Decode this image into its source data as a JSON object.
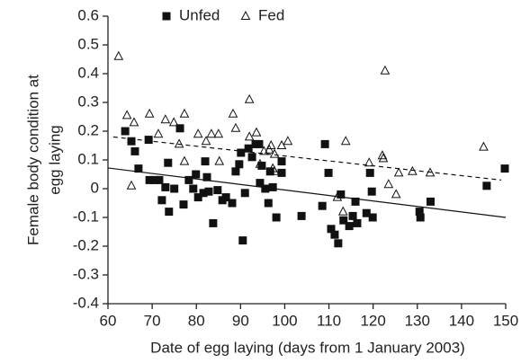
{
  "chart_data": {
    "type": "scatter",
    "xlabel": "Date of egg laying (days from 1 January 2003)",
    "ylabel": [
      "Female body condition at",
      "egg laying"
    ],
    "xlim": [
      60,
      150
    ],
    "ylim": [
      -0.4,
      0.6
    ],
    "xticks": [
      60,
      70,
      80,
      90,
      100,
      110,
      120,
      130,
      140,
      150
    ],
    "yticks": [
      -0.4,
      -0.3,
      -0.2,
      -0.1,
      0,
      0.1,
      0.2,
      0.3,
      0.4,
      0.5,
      0.6
    ],
    "legend": "top-left",
    "series": [
      {
        "name": "Unfed",
        "marker": "square",
        "color": "#111111",
        "x": [
          63.9,
          65.3,
          66.1,
          66.9,
          69.2,
          69.4,
          70.6,
          71.6,
          72.2,
          73,
          73.6,
          73.8,
          75,
          76.3,
          77.1,
          78.3,
          79.3,
          79.9,
          80.4,
          81.6,
          82,
          82.4,
          82.8,
          83.8,
          84.8,
          85.9,
          86.7,
          88.1,
          88.9,
          89.7,
          90.1,
          90.5,
          91,
          91.8,
          92.6,
          93.4,
          94.2,
          94.4,
          94.8,
          95.6,
          96.3,
          96.7,
          97.3,
          98.1,
          99.3,
          99.3,
          103.8,
          108.5,
          109.1,
          109.9,
          110.5,
          111.3,
          112.1,
          112.7,
          113.3,
          114.6,
          115.4,
          116,
          116.4,
          118.5,
          119.3,
          119.7,
          119.9,
          130.5,
          130.7,
          133,
          145.7,
          149.8
        ],
        "values": [
          0.2,
          0.165,
          0.13,
          0.07,
          0.17,
          0.03,
          0.03,
          0.03,
          -0.04,
          0.005,
          0.09,
          -0.08,
          0,
          0.21,
          -0.055,
          0.03,
          0,
          0.05,
          -0.03,
          -0.015,
          0.095,
          0.04,
          -0.01,
          -0.12,
          -0.005,
          -0.04,
          -0.03,
          -0.05,
          0.06,
          0.085,
          0.125,
          -0.18,
          -0.015,
          0.14,
          0.11,
          0.155,
          0.155,
          0.02,
          0.08,
          0,
          -0.05,
          0.06,
          0.005,
          -0.1,
          0.055,
          0.095,
          -0.095,
          -0.06,
          0.155,
          0.055,
          -0.14,
          -0.16,
          -0.19,
          -0.02,
          -0.11,
          -0.13,
          -0.095,
          -0.045,
          -0.12,
          -0.085,
          0.055,
          -0.01,
          -0.1,
          -0.08,
          -0.1,
          -0.045,
          0.01,
          0.07
        ]
      },
      {
        "name": "Fed",
        "marker": "triangle",
        "color": "#111111",
        "x": [
          62.4,
          64.3,
          65.3,
          65.9,
          69.4,
          71.4,
          73,
          74.9,
          76.1,
          77.3,
          77.3,
          80.4,
          82.2,
          83.4,
          85,
          85.2,
          88.3,
          88.9,
          92,
          92,
          93.6,
          94.4,
          95.3,
          96.5,
          96.9,
          97.3,
          97.7,
          97.7,
          99.3,
          100.7,
          113.8,
          111.9,
          113.2,
          119.1,
          122.7,
          122.1,
          122.3,
          123.5,
          125.2,
          125.8,
          128.9,
          132.9,
          145
        ],
        "values": [
          0.46,
          0.255,
          0.01,
          0.23,
          0.26,
          0.19,
          0.24,
          0.23,
          0.155,
          0.095,
          0.26,
          0.19,
          0.165,
          0.19,
          0.19,
          0.095,
          0.26,
          0.21,
          0.31,
          0.18,
          0.195,
          0.085,
          0.13,
          0.135,
          0.15,
          0.07,
          0.06,
          0.12,
          0.15,
          0.165,
          0.165,
          -0.03,
          -0.08,
          0.09,
          0.41,
          0.115,
          0.105,
          0.015,
          -0.02,
          0.055,
          0.06,
          0.055,
          0.145
        ]
      }
    ],
    "trend_lines": [
      {
        "x": [
          60,
          150
        ],
        "values": [
          0.072,
          -0.1
        ],
        "dashed": false,
        "color": "#111111"
      },
      {
        "x": [
          61.2,
          149
        ],
        "values": [
          0.18,
          0.03
        ],
        "dashed": true,
        "color": "#111111"
      }
    ]
  }
}
